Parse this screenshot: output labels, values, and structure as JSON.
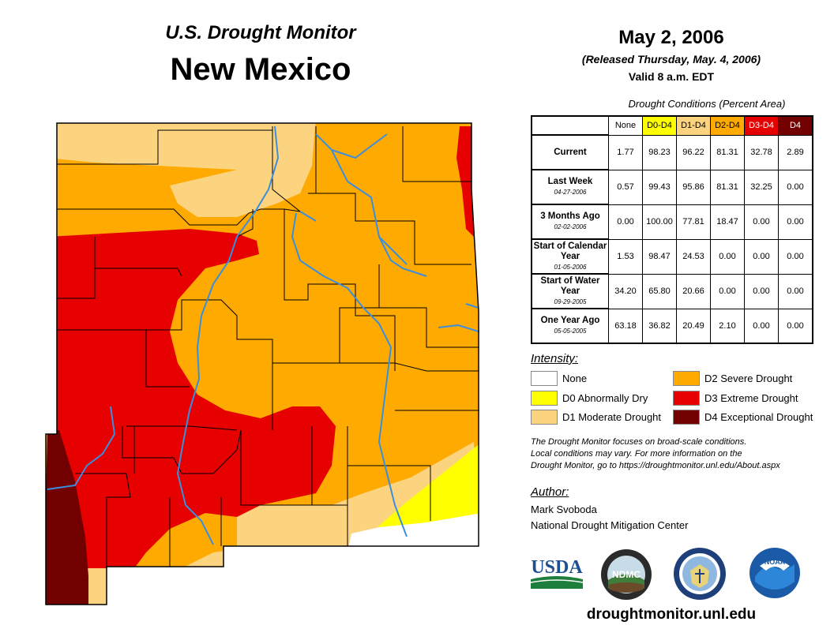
{
  "header": {
    "subtitle": "U.S. Drought Monitor",
    "state": "New Mexico",
    "date": "May 2, 2006",
    "released": "(Released Thursday, May. 4, 2006)",
    "valid": "Valid 8 a.m. EDT"
  },
  "table": {
    "caption": "Drought Conditions (Percent Area)",
    "columns": [
      "None",
      "D0-D4",
      "D1-D4",
      "D2-D4",
      "D3-D4",
      "D4"
    ],
    "rows": [
      {
        "label": "Current",
        "date": "",
        "values": [
          "1.77",
          "98.23",
          "96.22",
          "81.31",
          "32.78",
          "2.89"
        ]
      },
      {
        "label": "Last Week",
        "date": "04-27-2006",
        "values": [
          "0.57",
          "99.43",
          "95.86",
          "81.31",
          "32.25",
          "0.00"
        ]
      },
      {
        "label": "3 Months Ago",
        "date": "02-02-2006",
        "values": [
          "0.00",
          "100.00",
          "77.81",
          "18.47",
          "0.00",
          "0.00"
        ]
      },
      {
        "label": "Start of Calendar Year",
        "date": "01-05-2006",
        "values": [
          "1.53",
          "98.47",
          "24.53",
          "0.00",
          "0.00",
          "0.00"
        ]
      },
      {
        "label": "Start of Water Year",
        "date": "09-29-2005",
        "values": [
          "34.20",
          "65.80",
          "20.66",
          "0.00",
          "0.00",
          "0.00"
        ]
      },
      {
        "label": "One Year Ago",
        "date": "05-05-2005",
        "values": [
          "63.18",
          "36.82",
          "20.49",
          "2.10",
          "0.00",
          "0.00"
        ]
      }
    ]
  },
  "legend": {
    "title": "Intensity:",
    "items": [
      {
        "label": "None",
        "color": "#ffffff"
      },
      {
        "label": "D0 Abnormally Dry",
        "color": "#ffff00"
      },
      {
        "label": "D1 Moderate Drought",
        "color": "#fcd37f"
      },
      {
        "label": "D2 Severe Drought",
        "color": "#ffaa00"
      },
      {
        "label": "D3 Extreme Drought",
        "color": "#e60000"
      },
      {
        "label": "D4 Exceptional Drought",
        "color": "#730000"
      }
    ]
  },
  "note": {
    "line1": "The Drought Monitor focuses on broad-scale conditions.",
    "line2": "Local conditions may vary. For more information on the",
    "line3": "Drought Monitor, go to https://droughtmonitor.unl.edu/About.aspx"
  },
  "author": {
    "title": "Author:",
    "name": "Mark Svoboda",
    "org": "National Drought Mitigation Center"
  },
  "logos": {
    "usda": "USDA",
    "ndmc": "NDMC",
    "noaa": "NOAA"
  },
  "url": "droughtmonitor.unl.edu"
}
